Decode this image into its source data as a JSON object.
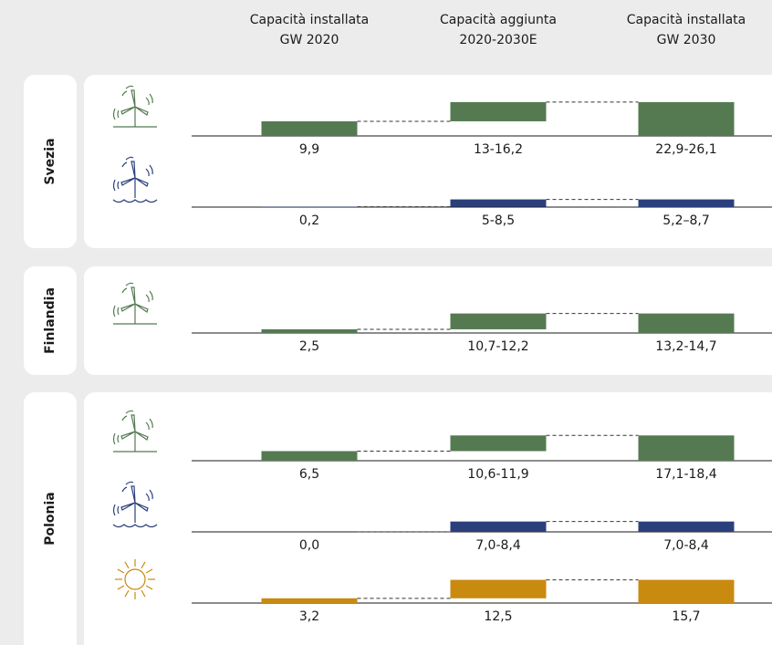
{
  "chart_data": {
    "type": "bar",
    "columns": [
      [
        "Capacità installata",
        "GW 2020"
      ],
      [
        "Capacità aggiunta",
        "2020-2030E"
      ],
      [
        "Capacità installata",
        "GW 2030"
      ]
    ],
    "groups": [
      {
        "name": "Svezia",
        "rows": [
          {
            "color": "#557a52",
            "values": [
              9.9,
              13,
              22.9
            ],
            "value_labels": [
              "9,9",
              "13-16,2",
              "22,9-26,1"
            ]
          },
          {
            "color": "#2b3f7c",
            "values": [
              0.2,
              5,
              5.2
            ],
            "value_labels": [
              "0,2",
              "5-8,5",
              "5,2–8,7"
            ]
          }
        ]
      },
      {
        "name": "Finlandia",
        "rows": [
          {
            "color": "#557a52",
            "values": [
              2.5,
              10.7,
              13.2
            ],
            "value_labels": [
              "2,5",
              "10,7-12,2",
              "13,2-14,7"
            ]
          }
        ]
      },
      {
        "name": "Polonia",
        "rows": [
          {
            "color": "#557a52",
            "values": [
              6.5,
              10.6,
              17.1
            ],
            "value_labels": [
              "6,5",
              "10,6-11,9",
              "17,1-18,4"
            ]
          },
          {
            "color": "#2b3f7c",
            "values": [
              0,
              7,
              7
            ],
            "value_labels": [
              "0,0",
              "7,0-8,4",
              "7,0-8,4"
            ]
          },
          {
            "color": "#c98a10",
            "values": [
              3.2,
              12.5,
              15.7
            ],
            "value_labels": [
              "3,2",
              "12,5",
              "15,7"
            ]
          }
        ]
      }
    ]
  }
}
